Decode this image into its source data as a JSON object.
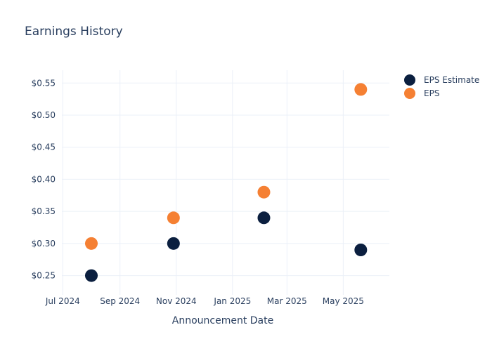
{
  "chart_data": {
    "type": "scatter",
    "title": "Earnings History",
    "xlabel": "Announcement Date",
    "ylabel": "",
    "x_ticks": [
      {
        "date": "2024-07-01",
        "label": "Jul 2024"
      },
      {
        "date": "2024-09-01",
        "label": "Sep 2024"
      },
      {
        "date": "2024-11-01",
        "label": "Nov 2024"
      },
      {
        "date": "2025-01-01",
        "label": "Jan 2025"
      },
      {
        "date": "2025-03-01",
        "label": "Mar 2025"
      },
      {
        "date": "2025-05-01",
        "label": "May 2025"
      }
    ],
    "y_ticks": [
      {
        "value": 0.25,
        "label": "$0.25"
      },
      {
        "value": 0.3,
        "label": "$0.30"
      },
      {
        "value": 0.35,
        "label": "$0.35"
      },
      {
        "value": 0.4,
        "label": "$0.40"
      },
      {
        "value": 0.45,
        "label": "$0.45"
      },
      {
        "value": 0.5,
        "label": "$0.50"
      },
      {
        "value": 0.55,
        "label": "$0.55"
      }
    ],
    "xlim": [
      "2024-06-30",
      "2025-06-20"
    ],
    "ylim": [
      0.22,
      0.57
    ],
    "grid": true,
    "legend_position": "top-right",
    "series": [
      {
        "name": "EPS Estimate",
        "color": "#0b1f3f",
        "points": [
          {
            "x": "2024-08-01",
            "y": 0.25
          },
          {
            "x": "2024-10-29",
            "y": 0.3
          },
          {
            "x": "2025-02-04",
            "y": 0.34
          },
          {
            "x": "2025-05-20",
            "y": 0.29
          }
        ]
      },
      {
        "name": "EPS",
        "color": "#f58033",
        "points": [
          {
            "x": "2024-08-01",
            "y": 0.3
          },
          {
            "x": "2024-10-29",
            "y": 0.34
          },
          {
            "x": "2025-02-04",
            "y": 0.38
          },
          {
            "x": "2025-05-20",
            "y": 0.54
          }
        ]
      }
    ]
  }
}
